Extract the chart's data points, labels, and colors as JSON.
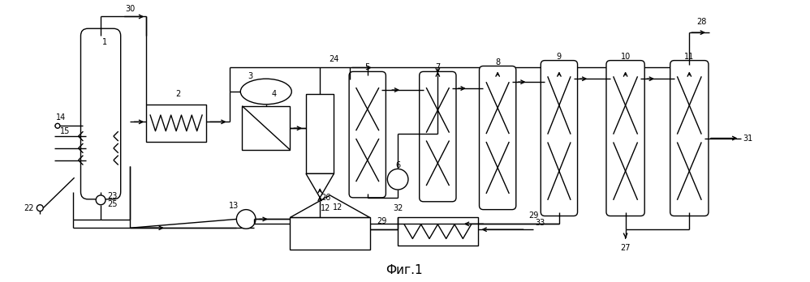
{
  "title": "Фиг.1",
  "bg_color": "#ffffff",
  "line_color": "#000000",
  "line_width": 1.0,
  "fig_width": 9.98,
  "fig_height": 3.48
}
